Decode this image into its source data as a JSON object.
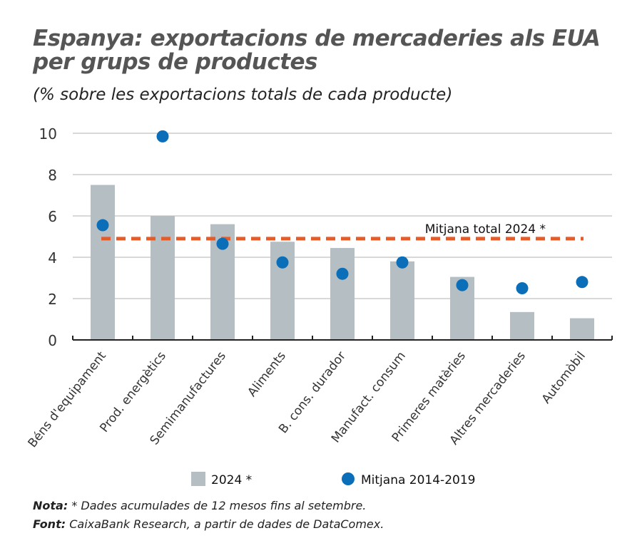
{
  "title_line1": "Espanya: exportacions de mercaderies als EUA",
  "title_line2": "per grups de productes",
  "subtitle": "(% sobre les exportacions totals de cada producte)",
  "colors": {
    "bar": "#b4bec3",
    "dot": "#0a6eb9",
    "mean_line": "#e35c2a"
  },
  "chart_data": {
    "type": "bar",
    "categories": [
      "Béns d'equipament",
      "Prod. energètics",
      "Semimanufactures",
      "Aliments",
      "B. cons. durador",
      "Manufact. consum",
      "Primeres matèries",
      "Altres mercaderies",
      "Automòbil"
    ],
    "series": [
      {
        "name": "2024 *",
        "type": "bar",
        "values": [
          7.5,
          6.0,
          5.6,
          4.75,
          4.45,
          3.8,
          3.05,
          1.35,
          1.05
        ]
      },
      {
        "name": "Mitjana 2014-2019",
        "type": "scatter",
        "values": [
          5.55,
          9.85,
          4.65,
          3.75,
          3.2,
          3.75,
          2.65,
          2.5,
          2.8
        ]
      }
    ],
    "reference_line": {
      "label": "Mitjana total 2024 *",
      "value": 4.9
    },
    "ylim": [
      0,
      10
    ],
    "yticks": [
      0,
      2,
      4,
      6,
      8,
      10
    ],
    "grid": true,
    "legend": "bottom"
  },
  "note_label": "Nota:",
  "note_text": " * Dades acumulades de 12 mesos fins al setembre.",
  "source_label": "Font:",
  "source_text": " CaixaBank Research, a partir de dades de DataComex."
}
